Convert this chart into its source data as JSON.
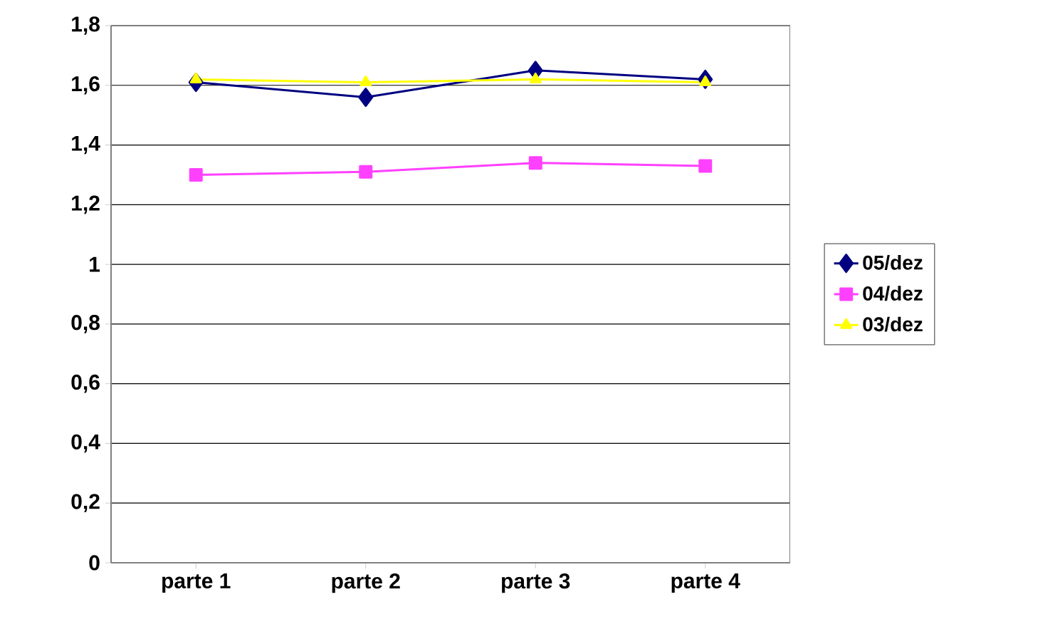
{
  "chart_data": {
    "type": "line",
    "categories": [
      "parte 1",
      "parte 2",
      "parte 3",
      "parte 4"
    ],
    "series": [
      {
        "name": "05/dez",
        "color": "#000080",
        "marker": "diamond",
        "values": [
          1.61,
          1.56,
          1.65,
          1.62
        ]
      },
      {
        "name": "04/dez",
        "color": "#ff40ff",
        "marker": "square",
        "values": [
          1.3,
          1.31,
          1.34,
          1.33
        ]
      },
      {
        "name": "03/dez",
        "color": "#ffff00",
        "marker": "triangle",
        "values": [
          1.62,
          1.61,
          1.62,
          1.61
        ]
      }
    ],
    "ylim": [
      0,
      1.8
    ],
    "yticks": [
      0,
      {
        "value": 0.2,
        "label": "0,2"
      },
      {
        "value": 0.4,
        "label": "0,4"
      },
      {
        "value": 0.6,
        "label": "0,6"
      },
      {
        "value": 0.8,
        "label": "0,8"
      },
      1,
      {
        "value": 1.2,
        "label": "1,2"
      },
      {
        "value": 1.4,
        "label": "1,4"
      },
      {
        "value": 1.6,
        "label": "1,6"
      },
      {
        "value": 1.8,
        "label": "1,8"
      }
    ],
    "grid": "y",
    "legend": "right"
  }
}
